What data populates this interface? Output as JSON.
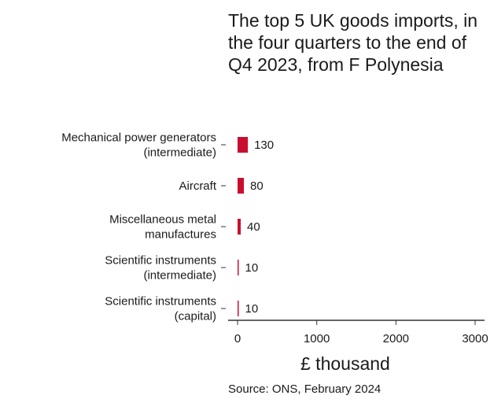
{
  "chart_data": {
    "type": "bar",
    "orientation": "horizontal",
    "title": "The top 5 UK goods imports, in the four quarters to the end of Q4 2023, from F Polynesia",
    "categories": [
      [
        "Mechanical power generators",
        "(intermediate)"
      ],
      [
        "Aircraft"
      ],
      [
        "Miscellaneous metal",
        "manufactures"
      ],
      [
        "Scientific instruments",
        "(intermediate)"
      ],
      [
        "Scientific instruments",
        "(capital)"
      ]
    ],
    "values": [
      130,
      80,
      40,
      10,
      10
    ],
    "data_labels": [
      "130",
      "80",
      "40",
      "10",
      "10"
    ],
    "xlabel": "£ thousand",
    "xlim": [
      0,
      3000
    ],
    "xticks": [
      0,
      1000,
      2000,
      3000
    ],
    "grid": false,
    "bar_color": "#c8102e",
    "source": "Source: ONS, February 2024"
  }
}
